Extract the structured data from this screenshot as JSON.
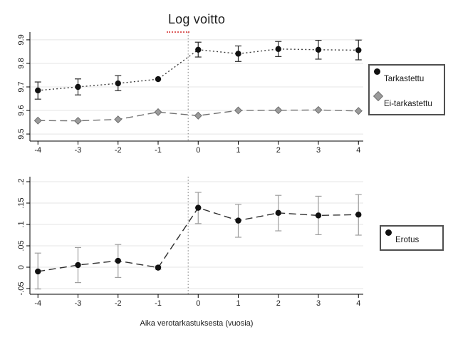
{
  "figure": {
    "background": "#ffffff"
  },
  "colors": {
    "grid": "#e5e5e5",
    "axis": "#000000",
    "vline": "#7d7d7d",
    "legend_border": "#4f4f4f",
    "spellcheck_underline": "#dd5f5f"
  },
  "chart_data": [
    {
      "type": "line",
      "panel": "top",
      "title": "Log voitto",
      "x": [
        -4,
        -3,
        -2,
        -1,
        0,
        1,
        2,
        3,
        4
      ],
      "xtick_labels": [
        "-4",
        "-3",
        "-2",
        "-1",
        "0",
        "1",
        "2",
        "3",
        "4"
      ],
      "ytick_values": [
        9.5,
        9.6,
        9.7,
        9.8,
        9.9
      ],
      "ytick_labels": [
        "9.5",
        "9.6",
        "9.7",
        "9.8",
        "9.9"
      ],
      "xlim": [
        -4.2,
        4.12
      ],
      "ylim": [
        9.47,
        9.933
      ],
      "grid": "horizontal",
      "legend_position": "right-outside",
      "vline_x": -0.25,
      "series": [
        {
          "name": "Tarkastettu",
          "marker": "circle",
          "marker_color": "#111111",
          "line_style": "dotted",
          "line_color": "#3c3c3c",
          "error_color": "#2b2b2b",
          "values": [
            9.685,
            9.7,
            9.715,
            9.733,
            9.858,
            9.841,
            9.861,
            9.858,
            9.856
          ],
          "ci_low": [
            9.648,
            9.666,
            9.684,
            null,
            9.827,
            9.808,
            9.829,
            9.818,
            9.815
          ],
          "ci_high": [
            9.721,
            9.734,
            9.748,
            null,
            9.89,
            9.874,
            9.893,
            9.898,
            9.899
          ]
        },
        {
          "name": "Ei-tarkastettu",
          "marker": "diamond",
          "marker_color": "#9b9b9b",
          "marker_edge": "#6f6f6f",
          "line_style": "dashed",
          "line_color": "#727272",
          "values": [
            9.557,
            9.556,
            9.562,
            9.593,
            9.578,
            9.6,
            9.601,
            9.602,
            9.598
          ]
        }
      ]
    },
    {
      "type": "line",
      "panel": "bottom",
      "xlabel": "Aika verotarkastuksesta (vuosia)",
      "x": [
        -4,
        -3,
        -2,
        -1,
        0,
        1,
        2,
        3,
        4
      ],
      "xtick_labels": [
        "-4",
        "-3",
        "-2",
        "-1",
        "0",
        "1",
        "2",
        "3",
        "4"
      ],
      "ytick_values": [
        -0.05,
        0,
        0.05,
        0.1,
        0.15,
        0.2
      ],
      "ytick_labels": [
        "-.05",
        "0",
        ".05",
        ".1",
        ".15",
        ".2"
      ],
      "xlim": [
        -4.2,
        4.12
      ],
      "ylim": [
        -0.0633,
        0.2117
      ],
      "grid": "horizontal",
      "legend_position": "right-outside",
      "vline_x": -0.25,
      "series": [
        {
          "name": "Erotus",
          "marker": "circle",
          "marker_color": "#111111",
          "line_style": "dashed",
          "line_color": "#2f2f2f",
          "error_color": "#9e9e9e",
          "values": [
            -0.01,
            0.005,
            0.015,
            -0.001,
            0.139,
            0.109,
            0.127,
            0.121,
            0.123
          ],
          "ci_low": [
            -0.051,
            -0.036,
            -0.024,
            -0.005,
            0.102,
            0.07,
            0.085,
            0.076,
            0.075
          ],
          "ci_high": [
            0.033,
            0.046,
            0.053,
            0.003,
            0.175,
            0.147,
            0.168,
            0.166,
            0.17
          ]
        }
      ]
    }
  ]
}
